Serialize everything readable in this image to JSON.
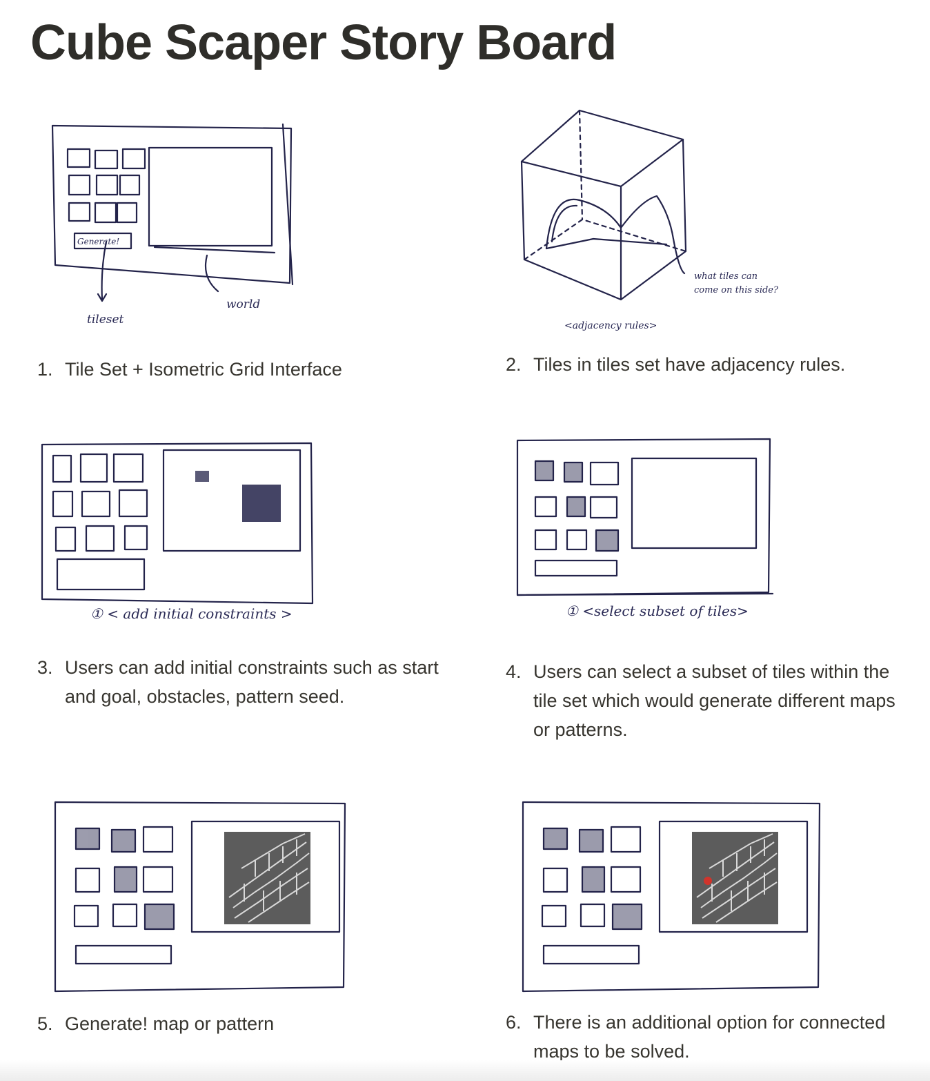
{
  "page": {
    "title": "Cube Scaper Story Board"
  },
  "steps": [
    {
      "number": "1.",
      "text": "Tile Set + Isometric Grid Interface",
      "sketch": {
        "labels": [
          "Generate!",
          "tileset",
          "world"
        ]
      }
    },
    {
      "number": "2.",
      "text": "Tiles in tiles set have adjacency rules.",
      "sketch": {
        "labels": [
          "what tiles can",
          "come on this side?",
          "<adjacency rules>"
        ]
      }
    },
    {
      "number": "3.",
      "text": "Users can add initial constraints such as start and goal, obstacles, pattern seed.",
      "sketch": {
        "labels": [
          "① < add initial constraints >"
        ]
      }
    },
    {
      "number": "4.",
      "text": "Users can select a subset of tiles within the tile set which would generate different maps or patterns.",
      "sketch": {
        "labels": [
          "① <select subset of tiles>"
        ]
      }
    },
    {
      "number": "5.",
      "text": "Generate! map or pattern",
      "sketch": {
        "labels": []
      }
    },
    {
      "number": "6.",
      "text": "There is an additional option for connected maps to be solved.",
      "sketch": {
        "labels": []
      }
    }
  ],
  "colors": {
    "ink": "#23234a",
    "maze_bg": "#5c5c5c",
    "solve_marker": "#d0342c"
  }
}
